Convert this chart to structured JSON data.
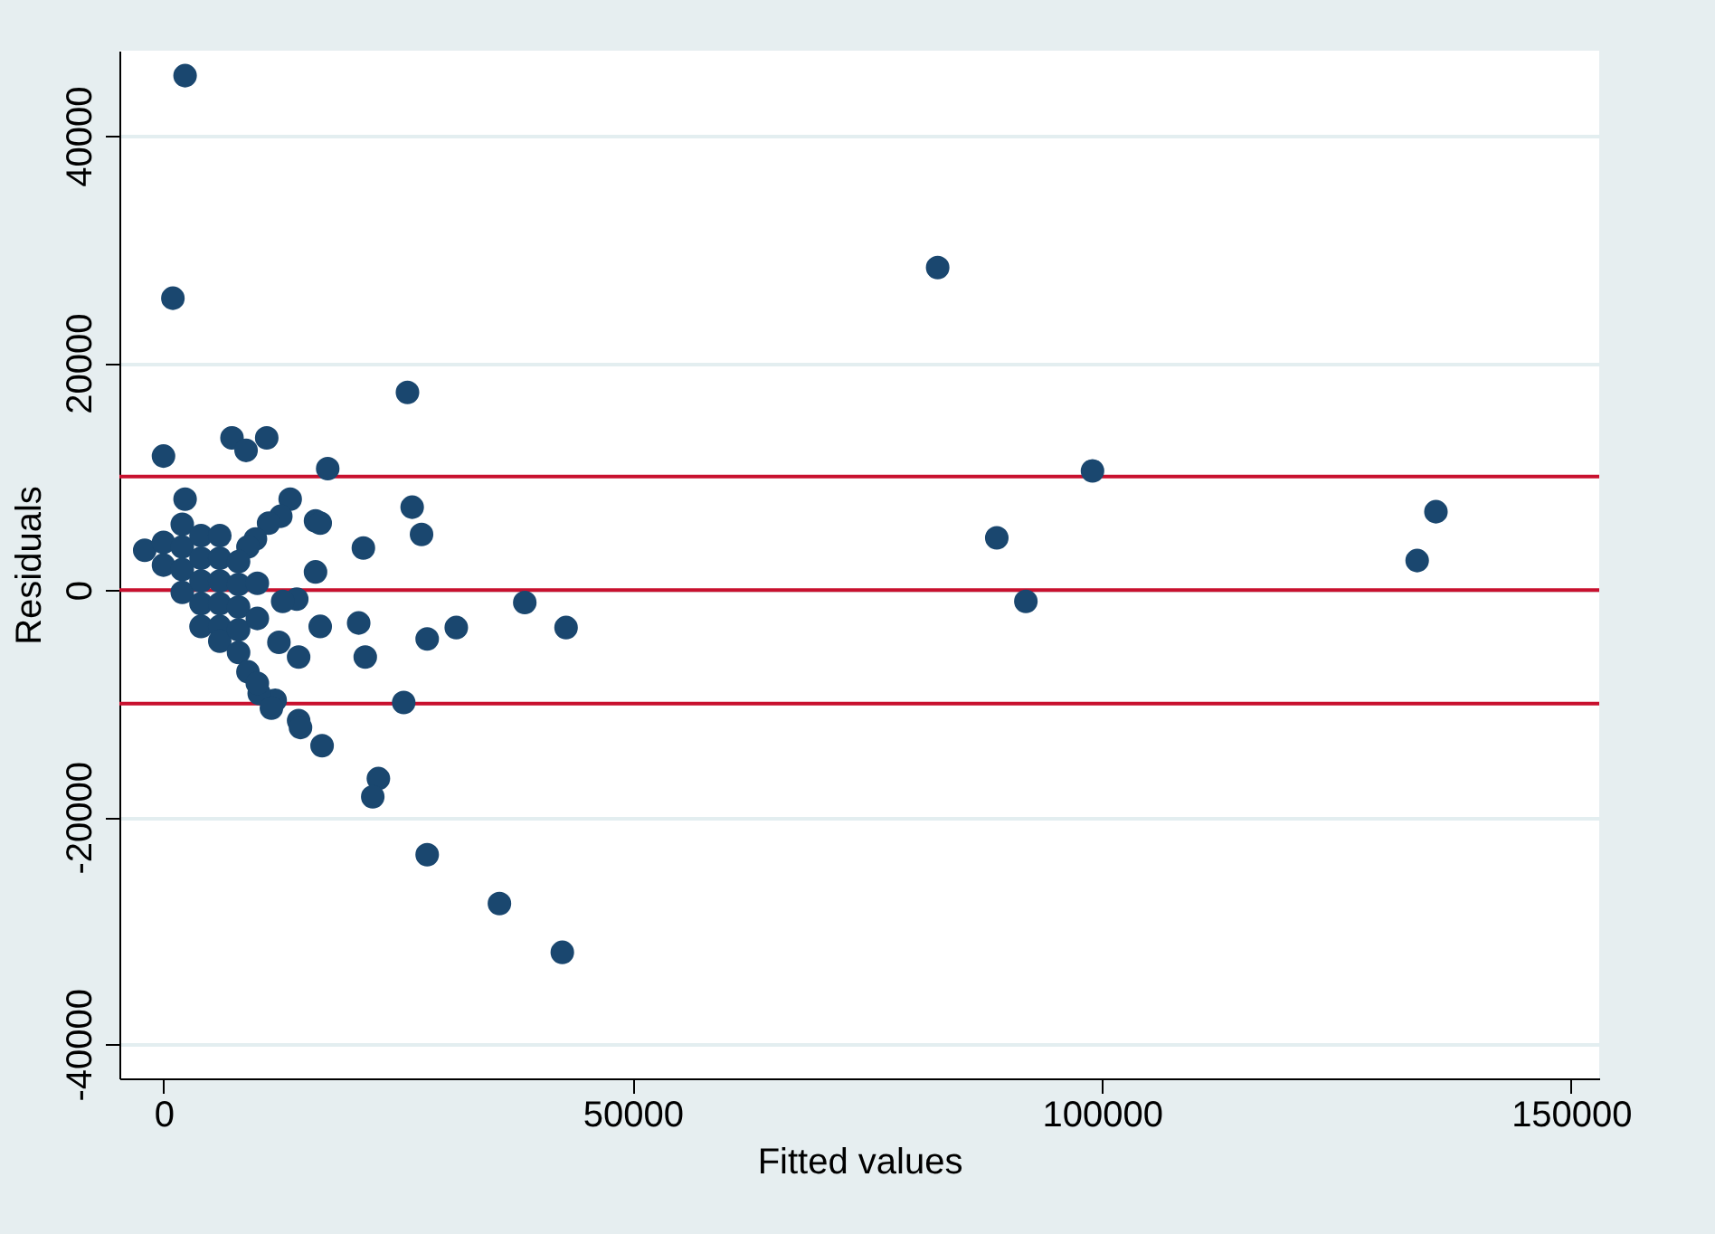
{
  "chart_data": {
    "type": "scatter",
    "xlabel": "Fitted values",
    "ylabel": "Residuals",
    "xlim": [
      -4700,
      153000
    ],
    "ylim": [
      -43000,
      47500
    ],
    "xticks": [
      0,
      50000,
      100000,
      150000
    ],
    "yticks": [
      -40000,
      -20000,
      0,
      20000,
      40000
    ],
    "grid": "y",
    "marker": "circle",
    "ref_lines": [
      {
        "axis": "y",
        "value": 10000,
        "label": null,
        "color": "#c8102e"
      },
      {
        "axis": "y",
        "value": 0,
        "label": null,
        "color": "#c8102e"
      },
      {
        "axis": "y",
        "value": -10000,
        "label": null,
        "color": "#c8102e"
      }
    ],
    "series": [
      {
        "color": "#1a476f",
        "x": [
          2300,
          1000,
          0,
          82500,
          26000,
          88800,
          91900,
          99000,
          133600,
          135600,
          42500,
          35800,
          28100,
          22900,
          22300,
          25600,
          26500,
          27500,
          28100,
          31200,
          38500,
          42900,
          16900,
          14400,
          14600,
          21300,
          21500,
          20800,
          16200,
          16700,
          14400,
          14200,
          12300,
          12700,
          11900,
          7300,
          8800,
          11000,
          17500,
          13500,
          12500,
          11200,
          9800,
          9000,
          16200,
          16700,
          2300,
          10200,
          11500,
          -2000,
          0,
          0,
          2000,
          2000,
          2000,
          2000,
          4000,
          4000,
          4000,
          4000,
          4000,
          6000,
          6000,
          6000,
          6000,
          6000,
          6000,
          8000,
          8000,
          8000,
          8000,
          8000,
          9000,
          10000,
          10000,
          10000
        ],
        "values": [
          45300,
          25700,
          11800,
          28400,
          17400,
          4600,
          -1000,
          10500,
          2600,
          6900,
          -31900,
          -27600,
          -23300,
          -16600,
          -18200,
          -9900,
          7300,
          4900,
          -4300,
          -3300,
          -1100,
          -3300,
          -13700,
          -11500,
          -12100,
          3700,
          -5900,
          -2900,
          1600,
          -3200,
          -5900,
          -800,
          -4600,
          -1000,
          -9700,
          13400,
          12300,
          13400,
          10700,
          8000,
          6500,
          5900,
          4500,
          3800,
          6100,
          5900,
          8000,
          -9100,
          -10400,
          3500,
          4200,
          2200,
          5800,
          3800,
          1800,
          -200,
          4800,
          2800,
          800,
          -1200,
          -3200,
          4800,
          2800,
          800,
          -1200,
          -3200,
          -4500,
          2500,
          500,
          -1500,
          -3500,
          -5500,
          -7200,
          -8200,
          -2500,
          600
        ]
      }
    ]
  }
}
